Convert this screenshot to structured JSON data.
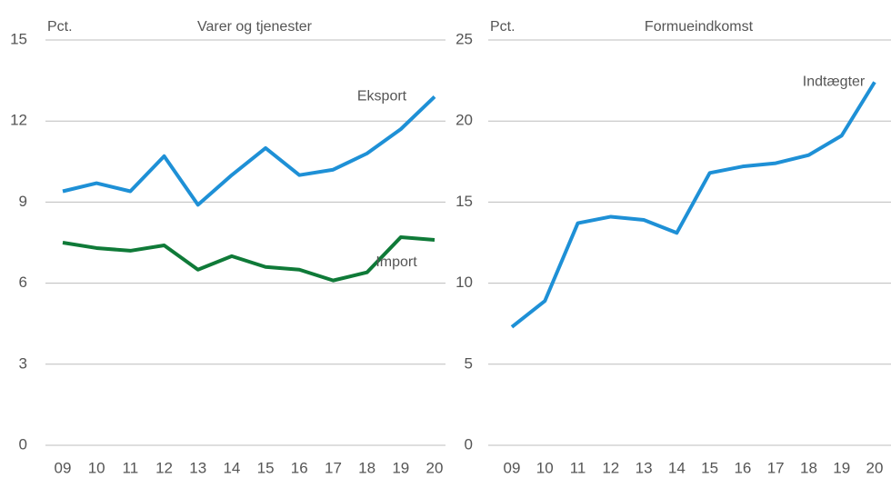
{
  "chart_data": [
    {
      "type": "line",
      "title": "Varer og tjenester",
      "ylabel": "Pct.",
      "categories": [
        "09",
        "10",
        "11",
        "12",
        "13",
        "14",
        "15",
        "16",
        "17",
        "18",
        "19",
        "20"
      ],
      "series": [
        {
          "name": "Eksport",
          "color": "#1e90d6",
          "values": [
            9.4,
            9.7,
            9.4,
            10.7,
            8.9,
            10.0,
            11.0,
            10.0,
            10.2,
            10.8,
            11.7,
            12.9
          ]
        },
        {
          "name": "Import",
          "color": "#0f7a38",
          "values": [
            7.5,
            7.3,
            7.2,
            7.4,
            6.5,
            7.0,
            6.6,
            6.5,
            6.1,
            6.4,
            7.7,
            7.6
          ]
        }
      ],
      "ylim": [
        0,
        15
      ],
      "yticks": [
        0,
        3,
        6,
        9,
        12,
        15
      ],
      "grid": true
    },
    {
      "type": "line",
      "title": "Formueindkomst",
      "ylabel": "Pct.",
      "categories": [
        "09",
        "10",
        "11",
        "12",
        "13",
        "14",
        "15",
        "16",
        "17",
        "18",
        "19",
        "20"
      ],
      "series": [
        {
          "name": "Indtægter",
          "color": "#1e90d6",
          "values": [
            7.3,
            8.9,
            13.7,
            14.1,
            13.9,
            13.1,
            16.8,
            17.2,
            17.4,
            17.9,
            19.1,
            22.4
          ]
        }
      ],
      "ylim": [
        0,
        25
      ],
      "yticks": [
        0,
        5,
        10,
        15,
        20,
        25
      ],
      "grid": true
    }
  ]
}
